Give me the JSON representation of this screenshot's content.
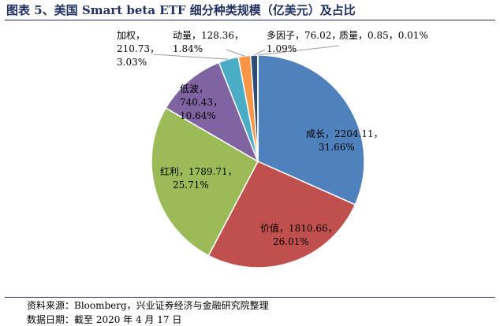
{
  "header": {
    "title": "图表 5、美国 Smart beta ETF 细分种类规模（亿美元）及占比"
  },
  "footer": {
    "source": "资料来源：Bloomberg，兴业证券经济与金融研究院整理",
    "date": "数据日期：截至 2020 年 4 月 17 日"
  },
  "chart_data": {
    "type": "pie",
    "title": "图表 5、美国 Smart beta ETF 细分种类规模（亿美元）及占比",
    "slices": [
      {
        "name": "成长",
        "value": 2204.11,
        "value_text": "2204.11",
        "pct": "31.66%",
        "color": "#4f81bd"
      },
      {
        "name": "价值",
        "value": 1810.66,
        "value_text": "1810.66",
        "pct": "26.01%",
        "color": "#c0504d"
      },
      {
        "name": "红利",
        "value": 1789.71,
        "value_text": "1789.71",
        "pct": "25.71%",
        "color": "#9bbb59"
      },
      {
        "name": "低波",
        "value": 740.43,
        "value_text": "740.43",
        "pct": "10.64%",
        "color": "#8064a2"
      },
      {
        "name": "加权",
        "value": 210.73,
        "value_text": "210.73",
        "pct": "3.03%",
        "color": "#4bacc6"
      },
      {
        "name": "动量",
        "value": 128.36,
        "value_text": "128.36",
        "pct": "1.84%",
        "color": "#f79646"
      },
      {
        "name": "多因子",
        "value": 76.02,
        "value_text": "76.02",
        "pct": "1.09%",
        "color": "#2c4d75"
      },
      {
        "name": "质量",
        "value": 0.85,
        "value_text": "0.85",
        "pct": "0.01%",
        "color": "#772c2a"
      }
    ]
  }
}
